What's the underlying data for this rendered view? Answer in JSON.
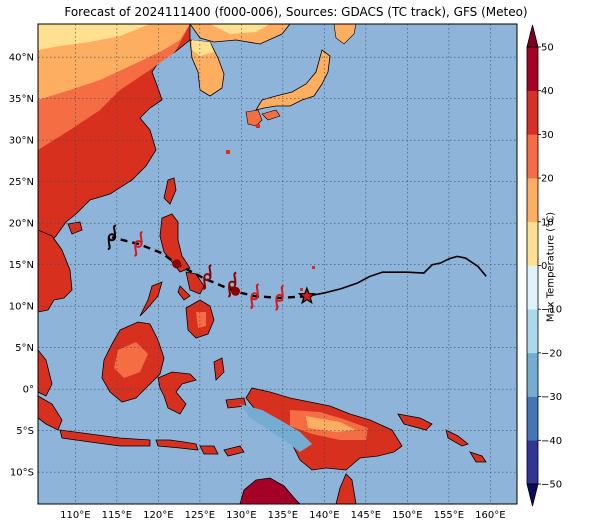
{
  "title": "Forecast of 2024111400 (f000-006), Sources: GDACS (TC track), GFS (Meteo)",
  "colorbar": {
    "label": "Max Temperature (°C)",
    "ticks": [
      "50",
      "40",
      "30",
      "20",
      "10",
      "0",
      "−10",
      "−20",
      "−30",
      "−40",
      "−50"
    ],
    "colors": [
      "#313695",
      "#4575b4",
      "#74add1",
      "#abd9e9",
      "#e0f3f8",
      "#fee090",
      "#fdae61",
      "#f46d43",
      "#d73027",
      "#a50026"
    ]
  },
  "map": {
    "lat_labels": [
      "40°N",
      "35°N",
      "30°N",
      "25°N",
      "20°N",
      "15°N",
      "10°N",
      "5°N",
      "0°",
      "5°S",
      "10°S"
    ],
    "lon_labels": [
      "110°E",
      "115°E",
      "120°E",
      "125°E",
      "130°E",
      "135°E",
      "140°E",
      "145°E",
      "150°E",
      "155°E",
      "160°E"
    ],
    "ocean_color": "#8fb4d9",
    "storm_track_observed": [
      [
        137.9,
        11.2
      ],
      [
        140,
        11.6
      ],
      [
        142,
        12.1
      ],
      [
        144,
        12.8
      ],
      [
        145.5,
        13.6
      ],
      [
        147,
        14.1
      ],
      [
        150,
        14.1
      ],
      [
        152,
        14.0
      ],
      [
        153,
        15.0
      ],
      [
        154,
        15.2
      ],
      [
        155,
        15.7
      ],
      [
        156,
        16.0
      ],
      [
        157,
        15.8
      ],
      [
        158.5,
        14.8
      ],
      [
        159.5,
        13.6
      ]
    ],
    "storm_track_forecast": [
      [
        137.9,
        11.2
      ],
      [
        134.6,
        11.0
      ],
      [
        131.6,
        11.2
      ],
      [
        129.2,
        11.8
      ],
      [
        125.4,
        13.4
      ],
      [
        122.2,
        15.1
      ],
      [
        120.4,
        16.4
      ],
      [
        117.6,
        17.5
      ],
      [
        114.4,
        18.3
      ]
    ],
    "forecast_symbols": [
      [
        134.6,
        11.0,
        "#d7191c"
      ],
      [
        131.6,
        11.2,
        "#d7191c"
      ],
      [
        128.9,
        12.6,
        "#8b0000"
      ],
      [
        125.9,
        13.5,
        "#8b0000"
      ],
      [
        117.6,
        17.5,
        "#d7191c"
      ],
      [
        114.4,
        18.3,
        "#000000"
      ]
    ],
    "dots": [
      [
        122.2,
        15.1
      ],
      [
        129.3,
        11.8
      ]
    ],
    "current_position": [
      137.9,
      11.2
    ]
  }
}
